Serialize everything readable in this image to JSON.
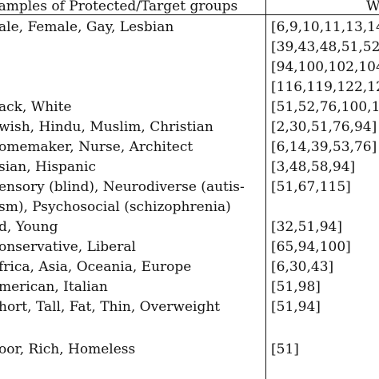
{
  "table": {
    "header": {
      "groups": "xamples of Protected/Target groups",
      "works": "W"
    },
    "rows": [
      {
        "groups": "ale, Female, Gay, Lesbian",
        "works": "[6,9,10,11,13,14"
      },
      {
        "groups": "",
        "works": "[39,43,48,51,52"
      },
      {
        "groups": "",
        "works": "[94,100,102,104"
      },
      {
        "groups": "",
        "works": "[116,119,122,12"
      },
      {
        "groups": "ack, White",
        "works": "[51,52,76,100,1"
      },
      {
        "groups": "wish, Hindu, Muslim, Christian",
        "works": "[2,30,51,76,94]"
      },
      {
        "groups": "omemaker, Nurse, Architect",
        "works": "[6,14,39,53,76]"
      },
      {
        "groups": "sian, Hispanic",
        "works": "[3,48,58,94]"
      },
      {
        "groups": "ensory (blind), Neurodiverse (autis-",
        "works": "[51,67,115]"
      },
      {
        "groups": "sm), Psychosocial (schizophrenia)",
        "works": ""
      },
      {
        "groups": "d, Young",
        "works": "[32,51,94]"
      },
      {
        "groups": "onservative, Liberal",
        "works": "[65,94,100]"
      },
      {
        "groups": "frica, Asia, Oceania, Europe",
        "works": "[6,30,43]"
      },
      {
        "groups": "merican, Italian",
        "works": "[51,98]"
      },
      {
        "groups": "hort, Tall, Fat, Thin, Overweight",
        "works": "[51,94]"
      },
      {
        "groups": "",
        "works": ""
      },
      {
        "groups": "oor, Rich, Homeless",
        "works": "[51]"
      }
    ]
  }
}
